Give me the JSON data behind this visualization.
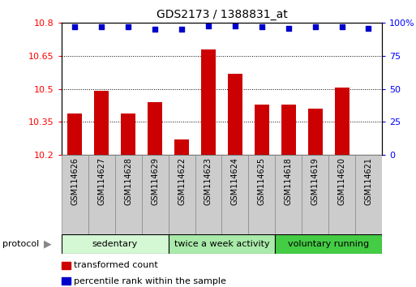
{
  "title": "GDS2173 / 1388831_at",
  "categories": [
    "GSM114626",
    "GSM114627",
    "GSM114628",
    "GSM114629",
    "GSM114622",
    "GSM114623",
    "GSM114624",
    "GSM114625",
    "GSM114618",
    "GSM114619",
    "GSM114620",
    "GSM114621"
  ],
  "bar_values": [
    10.39,
    10.49,
    10.39,
    10.44,
    10.27,
    10.68,
    10.57,
    10.43,
    10.43,
    10.41,
    10.505,
    10.2
  ],
  "percentile_values": [
    97,
    97,
    97,
    95,
    95,
    98,
    98,
    97,
    96,
    97,
    97,
    96
  ],
  "bar_color": "#cc0000",
  "dot_color": "#0000cc",
  "ylim_left": [
    10.2,
    10.8
  ],
  "ylim_right": [
    0,
    100
  ],
  "yticks_left": [
    10.2,
    10.35,
    10.5,
    10.65,
    10.8
  ],
  "ytick_labels_left": [
    "10.2",
    "10.35",
    "10.5",
    "10.65",
    "10.8"
  ],
  "yticks_right": [
    0,
    25,
    50,
    75,
    100
  ],
  "ytick_labels_right": [
    "0",
    "25",
    "50",
    "75",
    "100%"
  ],
  "groups": [
    {
      "label": "sedentary",
      "start": 0,
      "end": 4,
      "color": "#d4f7d4"
    },
    {
      "label": "twice a week activity",
      "start": 4,
      "end": 8,
      "color": "#aaeaaa"
    },
    {
      "label": "voluntary running",
      "start": 8,
      "end": 12,
      "color": "#44cc44"
    }
  ],
  "protocol_label": "protocol",
  "legend": [
    {
      "color": "#cc0000",
      "label": "transformed count"
    },
    {
      "color": "#0000cc",
      "label": "percentile rank within the sample"
    }
  ],
  "bar_width": 0.55,
  "label_box_color": "#cccccc",
  "label_box_border": "#888888"
}
